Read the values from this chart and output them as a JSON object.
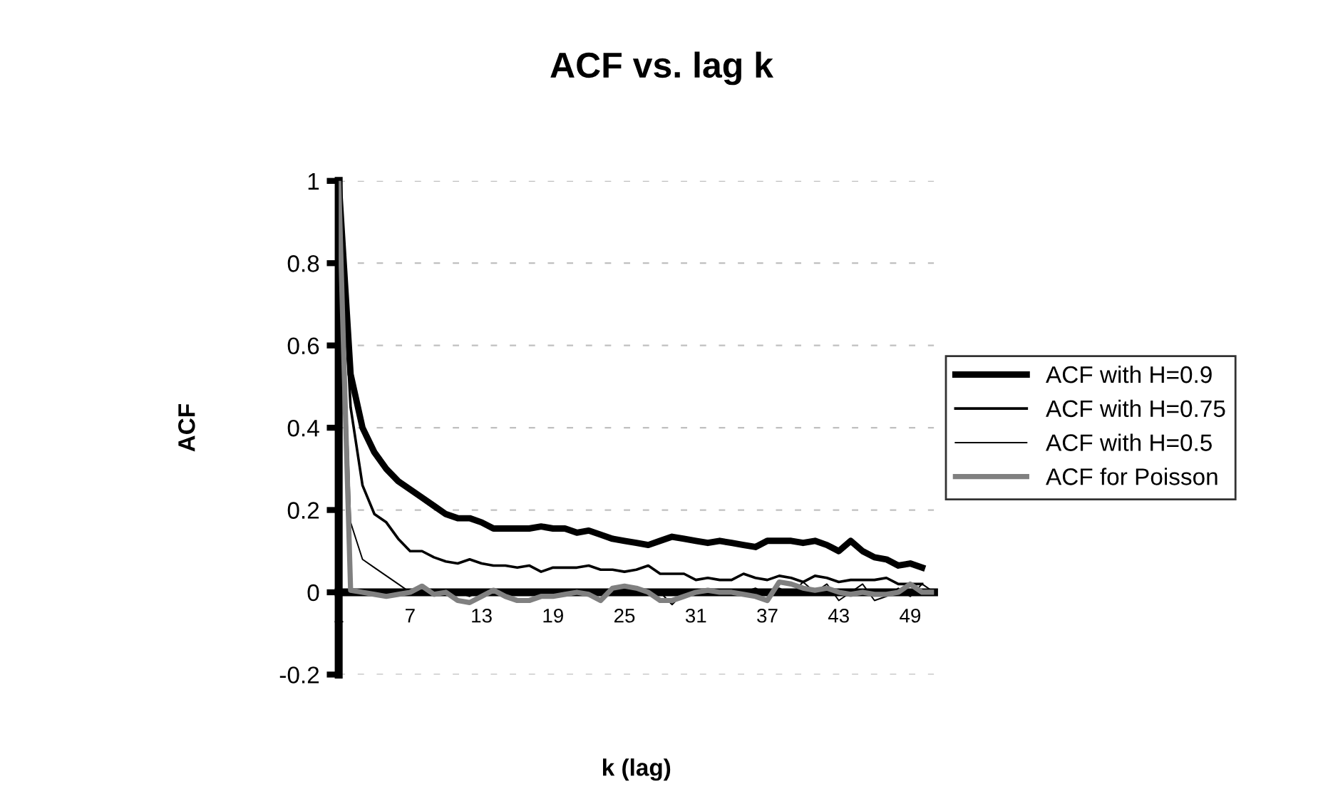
{
  "chart_data": {
    "type": "line",
    "title": "ACF vs. lag k",
    "xlabel": "k (lag)",
    "ylabel": "ACF",
    "categories": [
      "1",
      null,
      null,
      null,
      null,
      null,
      "7",
      null,
      null,
      null,
      null,
      null,
      "13",
      null,
      null,
      null,
      null,
      null,
      "19",
      null,
      null,
      null,
      null,
      null,
      "25",
      null,
      null,
      null,
      null,
      null,
      "31",
      null,
      null,
      null,
      null,
      null,
      "37",
      null,
      null,
      null,
      null,
      null,
      "43",
      null,
      null,
      null,
      null,
      null,
      "49",
      null,
      null
    ],
    "ylim": [
      -0.2,
      1
    ],
    "yticks": [
      -0.2,
      0,
      0.2,
      0.4,
      0.6,
      0.8,
      1
    ],
    "grid": "y",
    "legend": "right",
    "marker": "none",
    "line_style": "solid",
    "series": [
      {
        "name": "ACF with H=0.9",
        "color": "#000000",
        "values": [
          1,
          0.53,
          0.4,
          0.34,
          0.3,
          0.27,
          0.25,
          0.23,
          0.21,
          0.19,
          0.18,
          0.18,
          0.17,
          0.155,
          0.155,
          0.155,
          0.155,
          0.16,
          0.155,
          0.155,
          0.145,
          0.15,
          0.14,
          0.13,
          0.125,
          0.12,
          0.115,
          0.125,
          0.135,
          0.13,
          0.125,
          0.12,
          0.125,
          0.12,
          0.115,
          0.11,
          0.125,
          0.125,
          0.125,
          0.12,
          0.125,
          0.115,
          0.1,
          0.125,
          0.1,
          0.085,
          0.08,
          0.065,
          0.07,
          0.06,
          null
        ]
      },
      {
        "name": "ACF with H=0.75",
        "color": "#000000",
        "values": [
          1,
          0.45,
          0.26,
          0.19,
          0.17,
          0.13,
          0.1,
          0.1,
          0.085,
          0.075,
          0.07,
          0.08,
          0.07,
          0.065,
          0.065,
          0.06,
          0.065,
          0.05,
          0.06,
          0.06,
          0.06,
          0.065,
          0.055,
          0.055,
          0.05,
          0.055,
          0.065,
          0.045,
          0.045,
          0.045,
          0.03,
          0.035,
          0.03,
          0.03,
          0.045,
          0.035,
          0.03,
          0.04,
          0.035,
          0.025,
          0.04,
          0.035,
          0.025,
          0.03,
          0.03,
          0.03,
          0.035,
          0.02,
          0.02,
          0.02,
          null
        ]
      },
      {
        "name": "ACF with H=0.5",
        "color": "#000000",
        "values": [
          1,
          0.17,
          0.08,
          0.06,
          0.04,
          0.02,
          0.0,
          0.0,
          0.005,
          -0.005,
          0.0,
          -0.01,
          0.005,
          0.0,
          -0.005,
          0.0,
          0.005,
          -0.01,
          -0.005,
          -0.005,
          0.0,
          0.005,
          0.0,
          0.0,
          -0.005,
          0.0,
          0.005,
          0.0,
          -0.03,
          0.0,
          0.0,
          0.0,
          -0.005,
          0.005,
          0.0,
          0.01,
          -0.005,
          0.01,
          -0.005,
          0.025,
          0.0,
          0.02,
          -0.02,
          0.0,
          0.02,
          -0.02,
          -0.01,
          0.01,
          -0.01,
          0.02,
          0.0
        ]
      },
      {
        "name": "ACF for Poisson",
        "color": "#808080",
        "values": [
          1,
          0.005,
          0.0,
          -0.005,
          -0.01,
          -0.005,
          0.0,
          0.015,
          -0.005,
          0.0,
          -0.02,
          -0.025,
          -0.01,
          0.005,
          -0.01,
          -0.02,
          -0.02,
          -0.01,
          -0.01,
          -0.005,
          0.0,
          -0.005,
          -0.02,
          0.01,
          0.015,
          0.01,
          0.0,
          -0.02,
          -0.02,
          -0.01,
          0.0,
          0.005,
          0.0,
          0.0,
          -0.005,
          -0.01,
          -0.02,
          0.025,
          0.02,
          0.01,
          0.005,
          0.01,
          0.0,
          -0.005,
          0.0,
          -0.005,
          -0.005,
          0.0,
          0.02,
          0.0,
          0.0
        ]
      }
    ]
  }
}
